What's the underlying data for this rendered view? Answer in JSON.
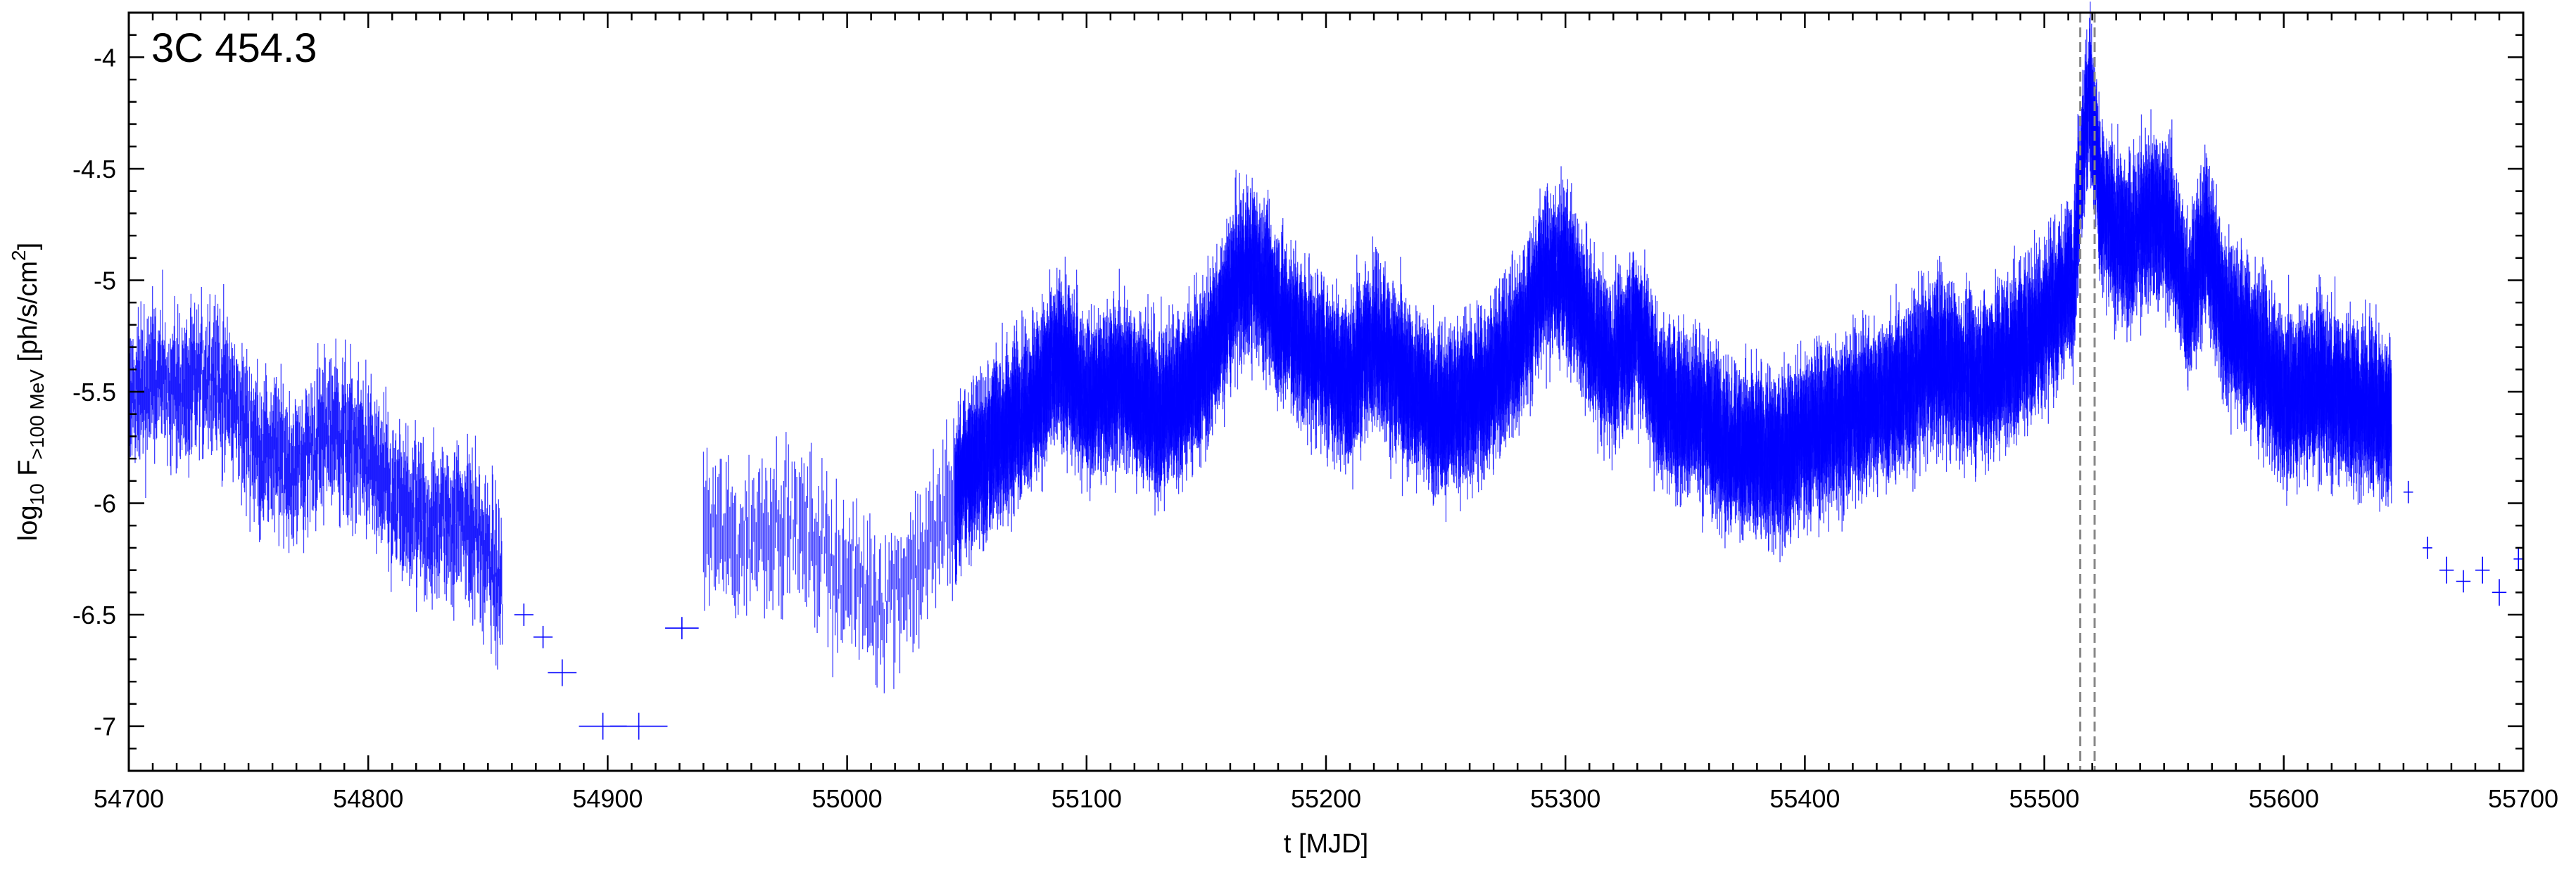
{
  "chart_data": {
    "type": "scatter",
    "title": "3C 454.3",
    "xlabel": "t [MJD]",
    "ylabel": {
      "base": "log",
      "base_sub": "10",
      "var": " F",
      "var_sub": ">100 MeV",
      "units_pre": " [ph/s/cm",
      "units_sup": "2",
      "units_post": "]"
    },
    "xlim": [
      54700,
      55700
    ],
    "ylim": [
      -7.2,
      -3.8
    ],
    "xticks": [
      54700,
      54800,
      54900,
      55000,
      55100,
      55200,
      55300,
      55400,
      55500,
      55600,
      55700
    ],
    "xtick_labels": [
      "54700",
      "54800",
      "54900",
      "55000",
      "55100",
      "55200",
      "55300",
      "55400",
      "55500",
      "55600",
      "55700"
    ],
    "yticks": [
      -7,
      -6.5,
      -6,
      -5.5,
      -5,
      -4.5,
      -4
    ],
    "ytick_labels": [
      "-7",
      "-6.5",
      "-6",
      "-5.5",
      "-5",
      "-4.5",
      "-4"
    ],
    "series": [
      {
        "color": "#0000ff",
        "error_bars": true,
        "light_curve_envelope": [
          [
            54700,
            -5.55
          ],
          [
            54710,
            -5.45
          ],
          [
            54725,
            -5.5
          ],
          [
            54735,
            -5.4
          ],
          [
            54745,
            -5.6
          ],
          [
            54755,
            -5.75
          ],
          [
            54770,
            -5.85
          ],
          [
            54785,
            -5.65
          ],
          [
            54800,
            -5.8
          ],
          [
            54810,
            -6.0
          ],
          [
            54825,
            -6.1
          ],
          [
            54840,
            -6.05
          ],
          [
            54850,
            -6.25
          ],
          [
            54856,
            -6.4
          ],
          [
            54940,
            -6.1
          ],
          [
            54955,
            -6.2
          ],
          [
            54970,
            -6.05
          ],
          [
            54985,
            -6.15
          ],
          [
            55000,
            -6.35
          ],
          [
            55015,
            -6.45
          ],
          [
            55035,
            -6.2
          ],
          [
            55050,
            -5.85
          ],
          [
            55065,
            -5.7
          ],
          [
            55080,
            -5.5
          ],
          [
            55090,
            -5.35
          ],
          [
            55100,
            -5.55
          ],
          [
            55115,
            -5.45
          ],
          [
            55130,
            -5.6
          ],
          [
            55145,
            -5.45
          ],
          [
            55155,
            -5.25
          ],
          [
            55163,
            -5.0
          ],
          [
            55170,
            -4.95
          ],
          [
            55180,
            -5.15
          ],
          [
            55195,
            -5.35
          ],
          [
            55210,
            -5.45
          ],
          [
            55220,
            -5.25
          ],
          [
            55235,
            -5.5
          ],
          [
            55250,
            -5.6
          ],
          [
            55265,
            -5.5
          ],
          [
            55280,
            -5.3
          ],
          [
            55290,
            -5.0
          ],
          [
            55300,
            -4.95
          ],
          [
            55310,
            -5.25
          ],
          [
            55320,
            -5.4
          ],
          [
            55330,
            -5.2
          ],
          [
            55340,
            -5.55
          ],
          [
            55355,
            -5.6
          ],
          [
            55370,
            -5.75
          ],
          [
            55385,
            -5.8
          ],
          [
            55400,
            -5.7
          ],
          [
            55420,
            -5.6
          ],
          [
            55440,
            -5.5
          ],
          [
            55455,
            -5.35
          ],
          [
            55470,
            -5.45
          ],
          [
            55480,
            -5.4
          ],
          [
            55495,
            -5.25
          ],
          [
            55505,
            -5.1
          ],
          [
            55512,
            -5.0
          ],
          [
            55516,
            -4.4
          ],
          [
            55519,
            -4.15
          ],
          [
            55524,
            -4.7
          ],
          [
            55535,
            -4.85
          ],
          [
            55545,
            -4.7
          ],
          [
            55552,
            -4.75
          ],
          [
            55560,
            -5.1
          ],
          [
            55568,
            -4.8
          ],
          [
            55575,
            -5.15
          ],
          [
            55590,
            -5.35
          ],
          [
            55600,
            -5.55
          ],
          [
            55615,
            -5.45
          ],
          [
            55630,
            -5.55
          ],
          [
            55645,
            -5.6
          ]
        ],
        "sparse_points": [
          {
            "x": 54865,
            "y": -6.5,
            "xerr": 4,
            "yerr": 0.05
          },
          {
            "x": 54873,
            "y": -6.6,
            "xerr": 4,
            "yerr": 0.05
          },
          {
            "x": 54881,
            "y": -6.76,
            "xerr": 6,
            "yerr": 0.06
          },
          {
            "x": 54898,
            "y": -7.0,
            "xerr": 10,
            "yerr": 0.06
          },
          {
            "x": 54913,
            "y": -7.0,
            "xerr": 12,
            "yerr": 0.06
          },
          {
            "x": 54931,
            "y": -6.56,
            "xerr": 7,
            "yerr": 0.05
          },
          {
            "x": 55652,
            "y": -5.95,
            "xerr": 2,
            "yerr": 0.05
          },
          {
            "x": 55660,
            "y": -6.2,
            "xerr": 2,
            "yerr": 0.05
          },
          {
            "x": 55668,
            "y": -6.3,
            "xerr": 3,
            "yerr": 0.06
          },
          {
            "x": 55675,
            "y": -6.35,
            "xerr": 3,
            "yerr": 0.05
          },
          {
            "x": 55683,
            "y": -6.3,
            "xerr": 3,
            "yerr": 0.06
          },
          {
            "x": 55690,
            "y": -6.4,
            "xerr": 3,
            "yerr": 0.06
          },
          {
            "x": 55698,
            "y": -6.25,
            "xerr": 2,
            "yerr": 0.05
          }
        ]
      }
    ],
    "annotations": [
      {
        "type": "vline",
        "x": 55515,
        "style": "dashed",
        "color": "#888888"
      },
      {
        "type": "vline",
        "x": 55521,
        "style": "dashed",
        "color": "#888888"
      }
    ],
    "grid": false
  }
}
